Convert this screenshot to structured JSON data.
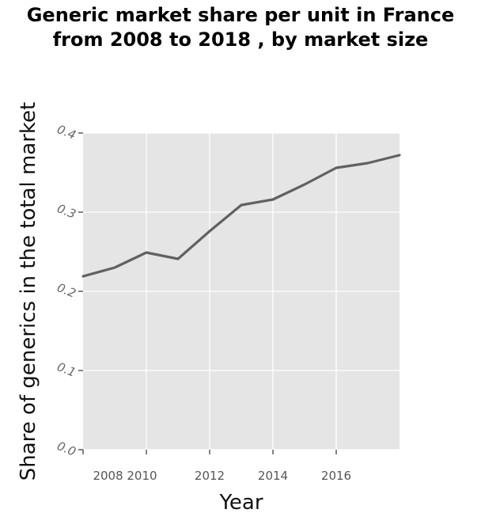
{
  "chart_data": {
    "type": "line",
    "title_lines": [
      "Generic market share per unit in France",
      "from 2008 to 2018 , by market size"
    ],
    "xlabel": "Year",
    "ylabel": "Share of generics in the total market",
    "x": [
      2008,
      2009,
      2010,
      2011,
      2012,
      2013,
      2014,
      2015,
      2016,
      2017,
      2018
    ],
    "series": [
      {
        "values": [
          0.219,
          0.23,
          0.249,
          0.241,
          0.276,
          0.309,
          0.316,
          0.335,
          0.356,
          0.362,
          0.372
        ]
      }
    ],
    "xlim": [
      2008,
      2018
    ],
    "ylim": [
      0,
      0.4
    ],
    "x_ticks": [
      2010,
      2012,
      2014,
      2016
    ],
    "x_tick_labels": [
      "2008 2010",
      "2012",
      "2014",
      "2016"
    ],
    "y_ticks": [
      0.0,
      0.1,
      0.2,
      0.3,
      0.4
    ],
    "y_tick_labels": [
      "0.0",
      "0.1",
      "0.2",
      "0.3",
      "0.4"
    ],
    "grid": true,
    "colors": {
      "plot_background": "#e5e5e5",
      "grid": "#ffffff",
      "line": "#616161"
    }
  }
}
